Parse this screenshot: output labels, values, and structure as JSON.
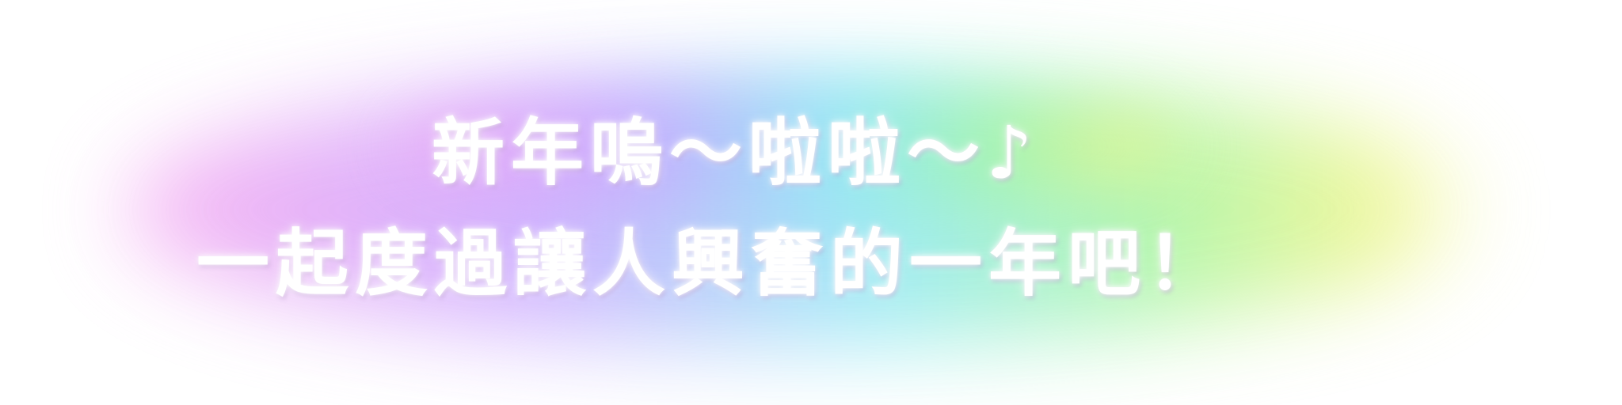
{
  "banner": {
    "line1": "新年嗚～啦啦～♪",
    "line2": "一起度過讓人興奮的一年吧！"
  },
  "colors": {
    "text": "#ffffff",
    "glow_pink": "#f6a6f0",
    "glow_violet": "#c9a6ff",
    "glow_cyan": "#8fe9f4",
    "glow_green": "#a6f5a2",
    "glow_yellow": "#eef58a"
  }
}
